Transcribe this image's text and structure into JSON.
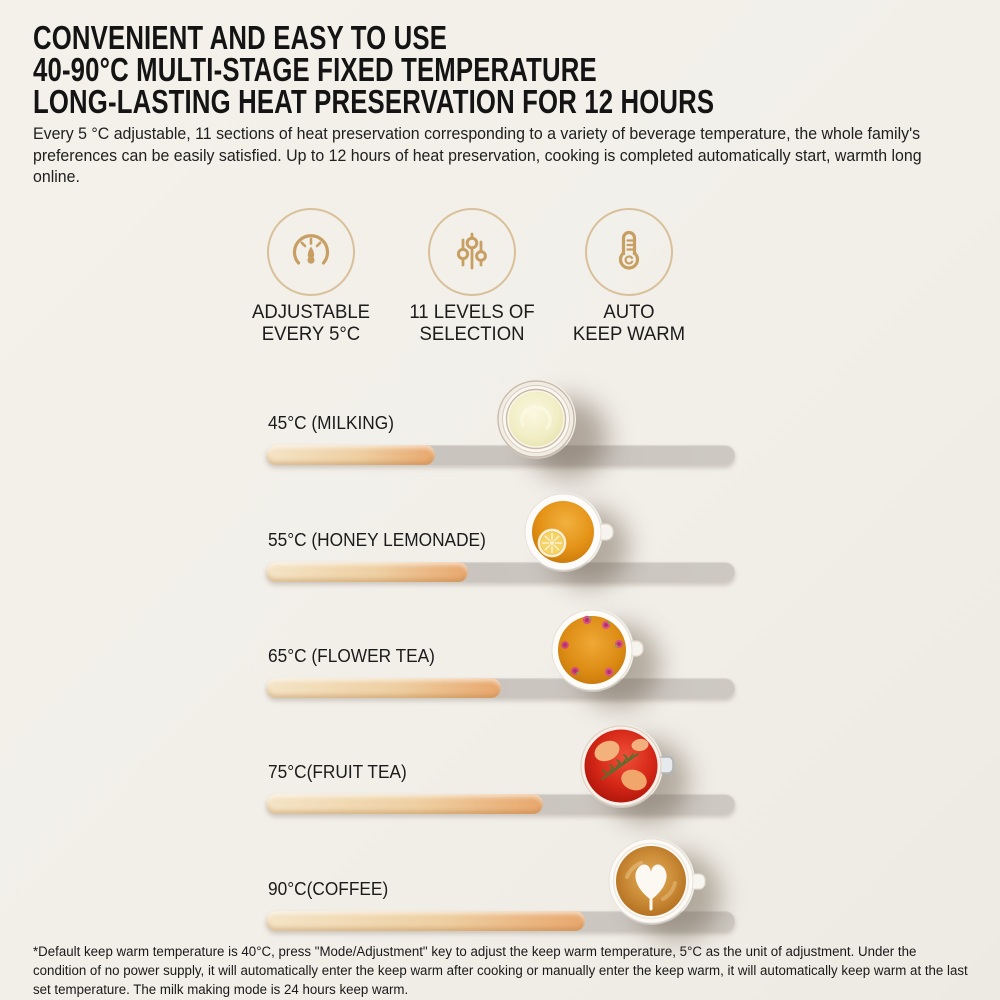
{
  "header": {
    "line1": "CONVENIENT AND EASY TO USE",
    "line2": "40-90°C MULTI-STAGE FIXED TEMPERATURE",
    "line3": "LONG-LASTING HEAT PRESERVATION FOR 12 HOURS"
  },
  "intro": {
    "text": "Every 5 °C adjustable, 11 sections of heat preservation corresponding to a variety of beverage temperature, the whole family's preferences can be easily satisfied. Up to 12 hours of heat preservation, cooking is completed automatically start, warmth long online."
  },
  "features": [
    {
      "icon": "dial-gauge-icon",
      "label_line1": "ADJUSTABLE",
      "label_line2": "EVERY 5°C"
    },
    {
      "icon": "sliders-icon",
      "label_line1": "11 LEVELS OF",
      "label_line2": "SELECTION"
    },
    {
      "icon": "thermometer-icon",
      "label_line1": "AUTO",
      "label_line2": "KEEP WARM"
    }
  ],
  "temps": [
    {
      "label": "45°C (MILKING)",
      "temperature_c": 45,
      "beverage": "MILKING",
      "fill_pct": 36,
      "cup": "milk"
    },
    {
      "label": "55°C (HONEY LEMONADE)",
      "temperature_c": 55,
      "beverage": "HONEY LEMONADE",
      "fill_pct": 43,
      "cup": "honey-lemonade"
    },
    {
      "label": "65°C (FLOWER TEA)",
      "temperature_c": 65,
      "beverage": "FLOWER TEA",
      "fill_pct": 50,
      "cup": "flower-tea"
    },
    {
      "label": "75°C(FRUIT TEA)",
      "temperature_c": 75,
      "beverage": "FRUIT TEA",
      "fill_pct": 59,
      "cup": "fruit-tea"
    },
    {
      "label": "90°C(COFFEE)",
      "temperature_c": 90,
      "beverage": "COFFEE",
      "fill_pct": 68,
      "cup": "coffee-latte"
    }
  ],
  "footnote": {
    "text": "*Default keep warm temperature is 40°C, press \"Mode/Adjustment\" key to adjust the keep warm temperature, 5°C as the unit of adjustment. Under the condition of no power supply, it will automatically enter the keep warm after cooking or manually enter the keep warm, it will automatically keep warm at the last set temperature. The milk making mode is 24 hours keep warm."
  },
  "colors": {
    "background": "#F2EFE9",
    "heading_text": "#141414",
    "accent_gold": "#C89F63",
    "icon_ring": "#D9C09A",
    "bar_track": "#C8C3BD",
    "bar_fill_start": "#F4E4C6",
    "bar_fill_end": "#E8A76D"
  }
}
